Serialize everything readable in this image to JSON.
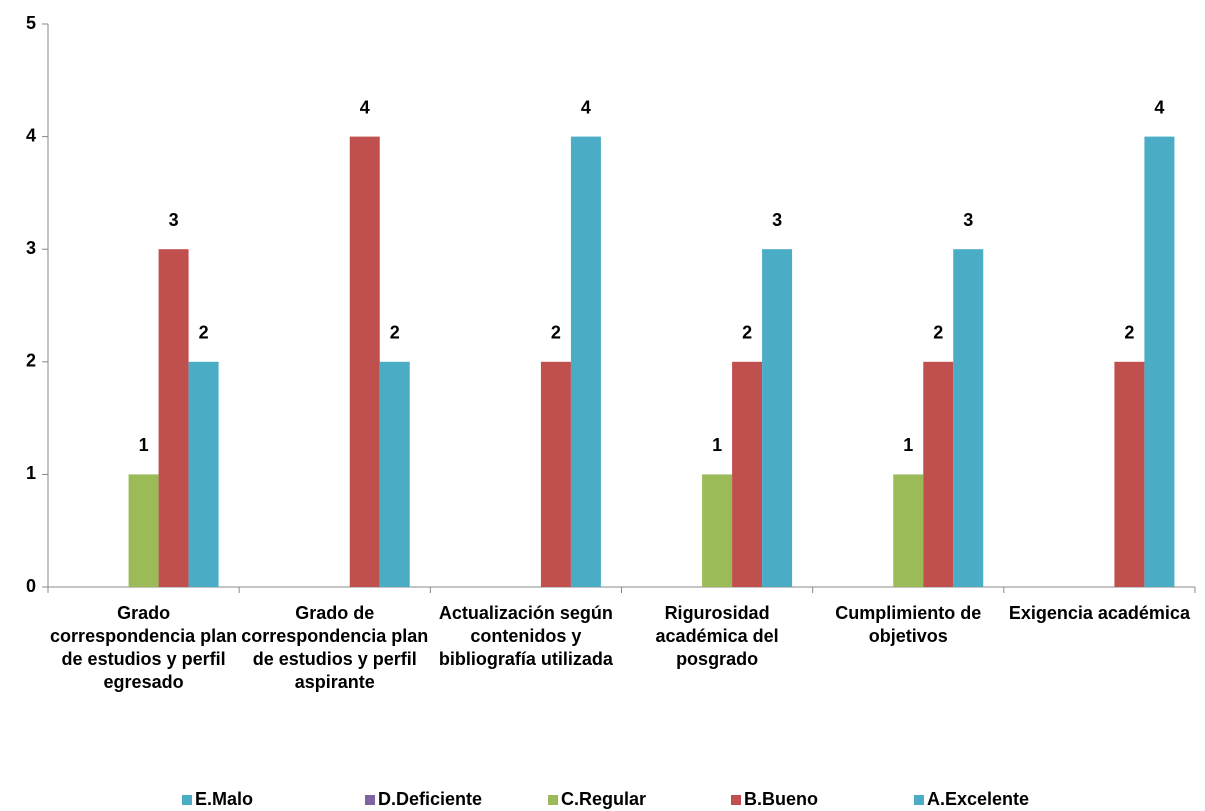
{
  "chart_data": {
    "type": "bar",
    "categories": [
      "Grado correspondencia plan de estudios y perfil egresado",
      "Grado de correspondencia plan de estudios y perfil aspirante",
      "Actualización según contenidos y bibliografía utilizada",
      "Rigurosidad académica del posgrado",
      "Cumplimiento de objetivos",
      "Exigencia académica"
    ],
    "series": [
      {
        "name": "E.Malo",
        "color": "#4bacc6",
        "values": [
          null,
          null,
          null,
          null,
          null,
          null
        ]
      },
      {
        "name": "D.Deficiente",
        "color": "#8064a2",
        "values": [
          null,
          null,
          null,
          null,
          null,
          null
        ]
      },
      {
        "name": "C.Regular",
        "color": "#9bbb59",
        "values": [
          1,
          null,
          null,
          1,
          1,
          null
        ]
      },
      {
        "name": "B.Bueno",
        "color": "#c0504d",
        "values": [
          3,
          4,
          2,
          2,
          2,
          2
        ]
      },
      {
        "name": "A.Excelente",
        "color": "#4bacc6",
        "values": [
          2,
          2,
          4,
          3,
          3,
          4
        ]
      }
    ],
    "ylim": [
      0,
      5
    ],
    "yticks": [
      0,
      1,
      2,
      3,
      4,
      5
    ],
    "grid": false,
    "legend": "bottom"
  }
}
